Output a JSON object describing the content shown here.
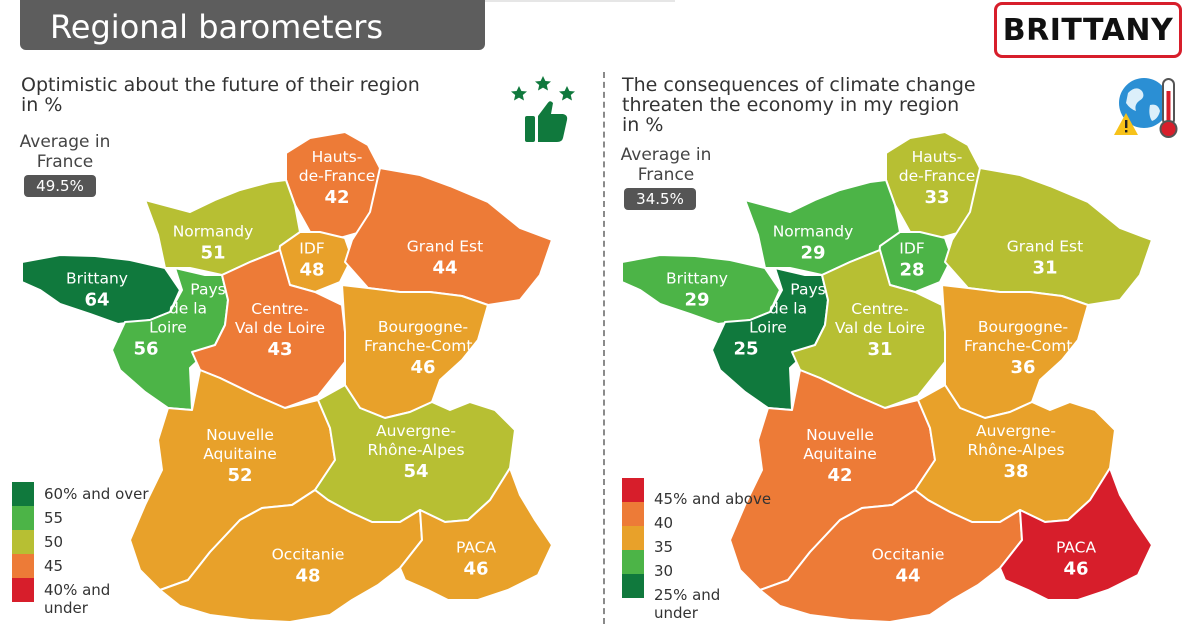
{
  "header": {
    "title": "Regional barometers",
    "region_badge": "BRITTANY"
  },
  "left_panel": {
    "title_line1": "Optimistic about the future of their region",
    "title_line2": "in %",
    "avg_label_line1": "Average in",
    "avg_label_line2": "France",
    "avg_value": "49.5%",
    "icon": "thumbs-up-stars-icon",
    "legend": [
      {
        "label": "60% and over",
        "color": "#10793d"
      },
      {
        "label": "55",
        "color": "#4cb447"
      },
      {
        "label": "50",
        "color": "#b7bf33"
      },
      {
        "label": "45",
        "color": "#ed7b37"
      },
      {
        "label": "40% and",
        "label2": "under",
        "color": "#d71e2b"
      }
    ]
  },
  "right_panel": {
    "title_line1": "The consequences of climate change",
    "title_line2": "threaten the economy in my region",
    "title_line3": "in %",
    "avg_label_line1": "Average in",
    "avg_label_line2": "France",
    "avg_value": "34.5%",
    "icon": "globe-thermometer-warning-icon",
    "legend": [
      {
        "label": "45% and above",
        "color": "#d71e2b"
      },
      {
        "label": "40",
        "color": "#ed7b37"
      },
      {
        "label": "35",
        "color": "#e8a12a"
      },
      {
        "label": "30",
        "color": "#4cb447"
      },
      {
        "label": "25% and",
        "label2": "under",
        "color": "#10793d"
      }
    ]
  },
  "chart_data": [
    {
      "type": "choropleth",
      "title": "Optimistic about the future of their region",
      "unit": "in %",
      "average_france": 49.5,
      "regions": [
        {
          "id": "hauts-de-france",
          "name_lines": [
            "Hauts-",
            "de-France"
          ],
          "value": 42,
          "color": "#ed7b37"
        },
        {
          "id": "normandy",
          "name_lines": [
            "Normandy"
          ],
          "value": 51,
          "color": "#b7bf33"
        },
        {
          "id": "idf",
          "name_lines": [
            "IDF"
          ],
          "value": 48,
          "color": "#e8a12a"
        },
        {
          "id": "grand-est",
          "name_lines": [
            "Grand Est"
          ],
          "value": 44,
          "color": "#ed7b37"
        },
        {
          "id": "brittany",
          "name_lines": [
            "Brittany"
          ],
          "value": 64,
          "color": "#10793d"
        },
        {
          "id": "pays-de-la-loire",
          "name_lines": [
            "Pays",
            "de la",
            "Loire"
          ],
          "value": 56,
          "color": "#4cb447"
        },
        {
          "id": "centre-val-de-loire",
          "name_lines": [
            "Centre-",
            "Val de Loire"
          ],
          "value": 43,
          "color": "#ed7b37"
        },
        {
          "id": "bourgogne-franche-comte",
          "name_lines": [
            "Bourgogne-",
            "Franche-Comté"
          ],
          "value": 46,
          "color": "#e8a12a"
        },
        {
          "id": "nouvelle-aquitaine",
          "name_lines": [
            "Nouvelle",
            "Aquitaine"
          ],
          "value": 52,
          "color": "#e8a12a"
        },
        {
          "id": "auvergne-rhone-alpes",
          "name_lines": [
            "Auvergne-",
            "Rhône-Alpes"
          ],
          "value": 54,
          "color": "#b7bf33"
        },
        {
          "id": "occitanie",
          "name_lines": [
            "Occitanie"
          ],
          "value": 48,
          "color": "#e8a12a"
        },
        {
          "id": "paca",
          "name_lines": [
            "PACA"
          ],
          "value": 46,
          "color": "#e8a12a"
        }
      ]
    },
    {
      "type": "choropleth",
      "title": "The consequences of climate change threaten the economy in my region",
      "unit": "in %",
      "average_france": 34.5,
      "regions": [
        {
          "id": "hauts-de-france",
          "name_lines": [
            "Hauts-",
            "de-France"
          ],
          "value": 33,
          "color": "#b7bf33"
        },
        {
          "id": "normandy",
          "name_lines": [
            "Normandy"
          ],
          "value": 29,
          "color": "#4cb447"
        },
        {
          "id": "idf",
          "name_lines": [
            "IDF"
          ],
          "value": 28,
          "color": "#4cb447"
        },
        {
          "id": "grand-est",
          "name_lines": [
            "Grand Est"
          ],
          "value": 31,
          "color": "#b7bf33"
        },
        {
          "id": "brittany",
          "name_lines": [
            "Brittany"
          ],
          "value": 29,
          "color": "#4cb447"
        },
        {
          "id": "pays-de-la-loire",
          "name_lines": [
            "Pays",
            "de la",
            "Loire"
          ],
          "value": 25,
          "color": "#10793d"
        },
        {
          "id": "centre-val-de-loire",
          "name_lines": [
            "Centre-",
            "Val de Loire"
          ],
          "value": 31,
          "color": "#b7bf33"
        },
        {
          "id": "bourgogne-franche-comte",
          "name_lines": [
            "Bourgogne-",
            "Franche-Comté"
          ],
          "value": 36,
          "color": "#e8a12a"
        },
        {
          "id": "nouvelle-aquitaine",
          "name_lines": [
            "Nouvelle",
            "Aquitaine"
          ],
          "value": 42,
          "color": "#ed7b37"
        },
        {
          "id": "auvergne-rhone-alpes",
          "name_lines": [
            "Auvergne-",
            "Rhône-Alpes"
          ],
          "value": 38,
          "color": "#e8a12a"
        },
        {
          "id": "occitanie",
          "name_lines": [
            "Occitanie"
          ],
          "value": 44,
          "color": "#ed7b37"
        },
        {
          "id": "paca",
          "name_lines": [
            "PACA"
          ],
          "value": 46,
          "color": "#d71e2b"
        }
      ]
    }
  ]
}
